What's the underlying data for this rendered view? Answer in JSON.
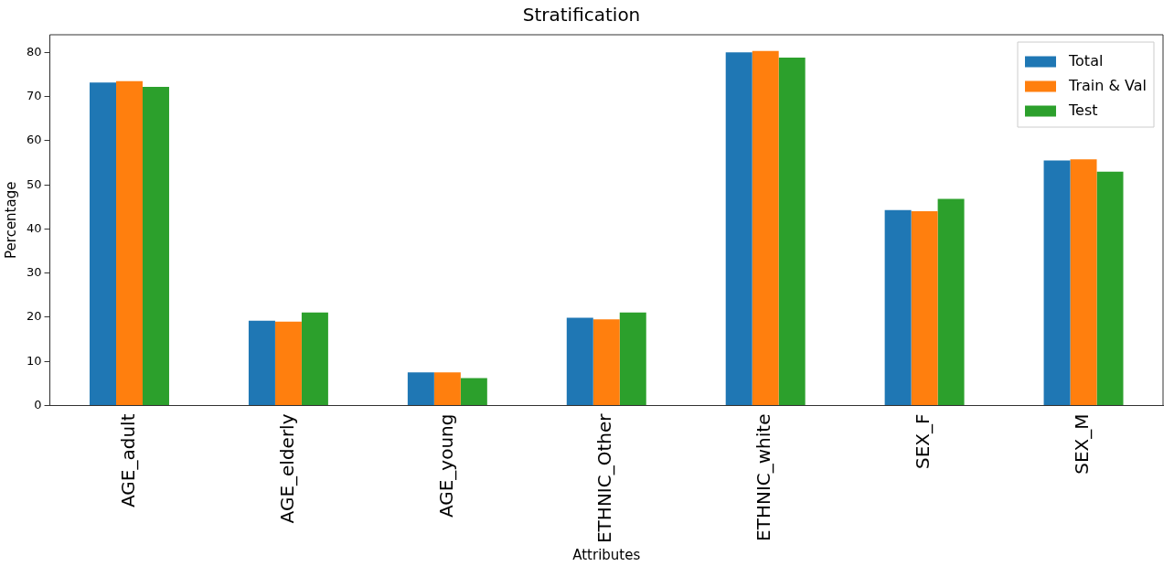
{
  "chart_data": {
    "type": "bar",
    "title": "Stratification",
    "xlabel": "Attributes",
    "ylabel": "Percentage",
    "categories": [
      "AGE_adult",
      "AGE_elderly",
      "AGE_young",
      "ETHNIC_Other",
      "ETHNIC_white",
      "SEX_F",
      "SEX_M"
    ],
    "series": [
      {
        "name": "Total",
        "color": "#1f77b4",
        "values": [
          73.2,
          19.2,
          7.5,
          19.9,
          80.0,
          44.3,
          55.5
        ]
      },
      {
        "name": "Train & Val",
        "color": "#ff7f0e",
        "values": [
          73.5,
          19.0,
          7.5,
          19.5,
          80.3,
          44.0,
          55.8
        ]
      },
      {
        "name": "Test",
        "color": "#2ca02c",
        "values": [
          72.2,
          21.1,
          6.2,
          21.1,
          78.8,
          46.8,
          53.0
        ]
      }
    ],
    "ylim": [
      0,
      84
    ],
    "yticks": [
      0,
      10,
      20,
      30,
      40,
      50,
      60,
      70,
      80
    ],
    "grid": false,
    "legend": "top right"
  }
}
